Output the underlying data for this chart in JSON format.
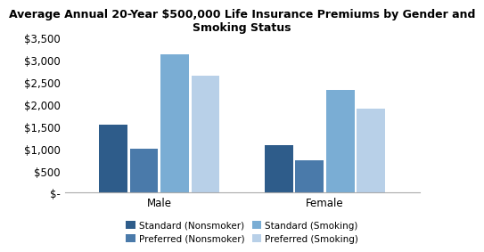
{
  "title": "Average Annual 20-Year $500,000 Life Insurance Premiums by Gender and\nSmoking Status",
  "groups": [
    "Male",
    "Female"
  ],
  "series": [
    {
      "label": "Standard (Nonsmoker)",
      "values": [
        1530,
        1080
      ],
      "color": "#2e5c8a"
    },
    {
      "label": "Preferred (Nonsmoker)",
      "values": [
        990,
        730
      ],
      "color": "#4a7aaa"
    },
    {
      "label": "Standard (Smoking)",
      "values": [
        3120,
        2320
      ],
      "color": "#7aadd4"
    },
    {
      "label": "Preferred (Smoking)",
      "values": [
        2650,
        1890
      ],
      "color": "#b8d0e8"
    }
  ],
  "ylim": [
    0,
    3500
  ],
  "yticks": [
    0,
    500,
    1000,
    1500,
    2000,
    2500,
    3000,
    3500
  ],
  "background_color": "#ffffff",
  "plot_bg_color": "#ffffff",
  "title_fontsize": 9,
  "legend_fontsize": 7.5,
  "tick_fontsize": 8.5
}
